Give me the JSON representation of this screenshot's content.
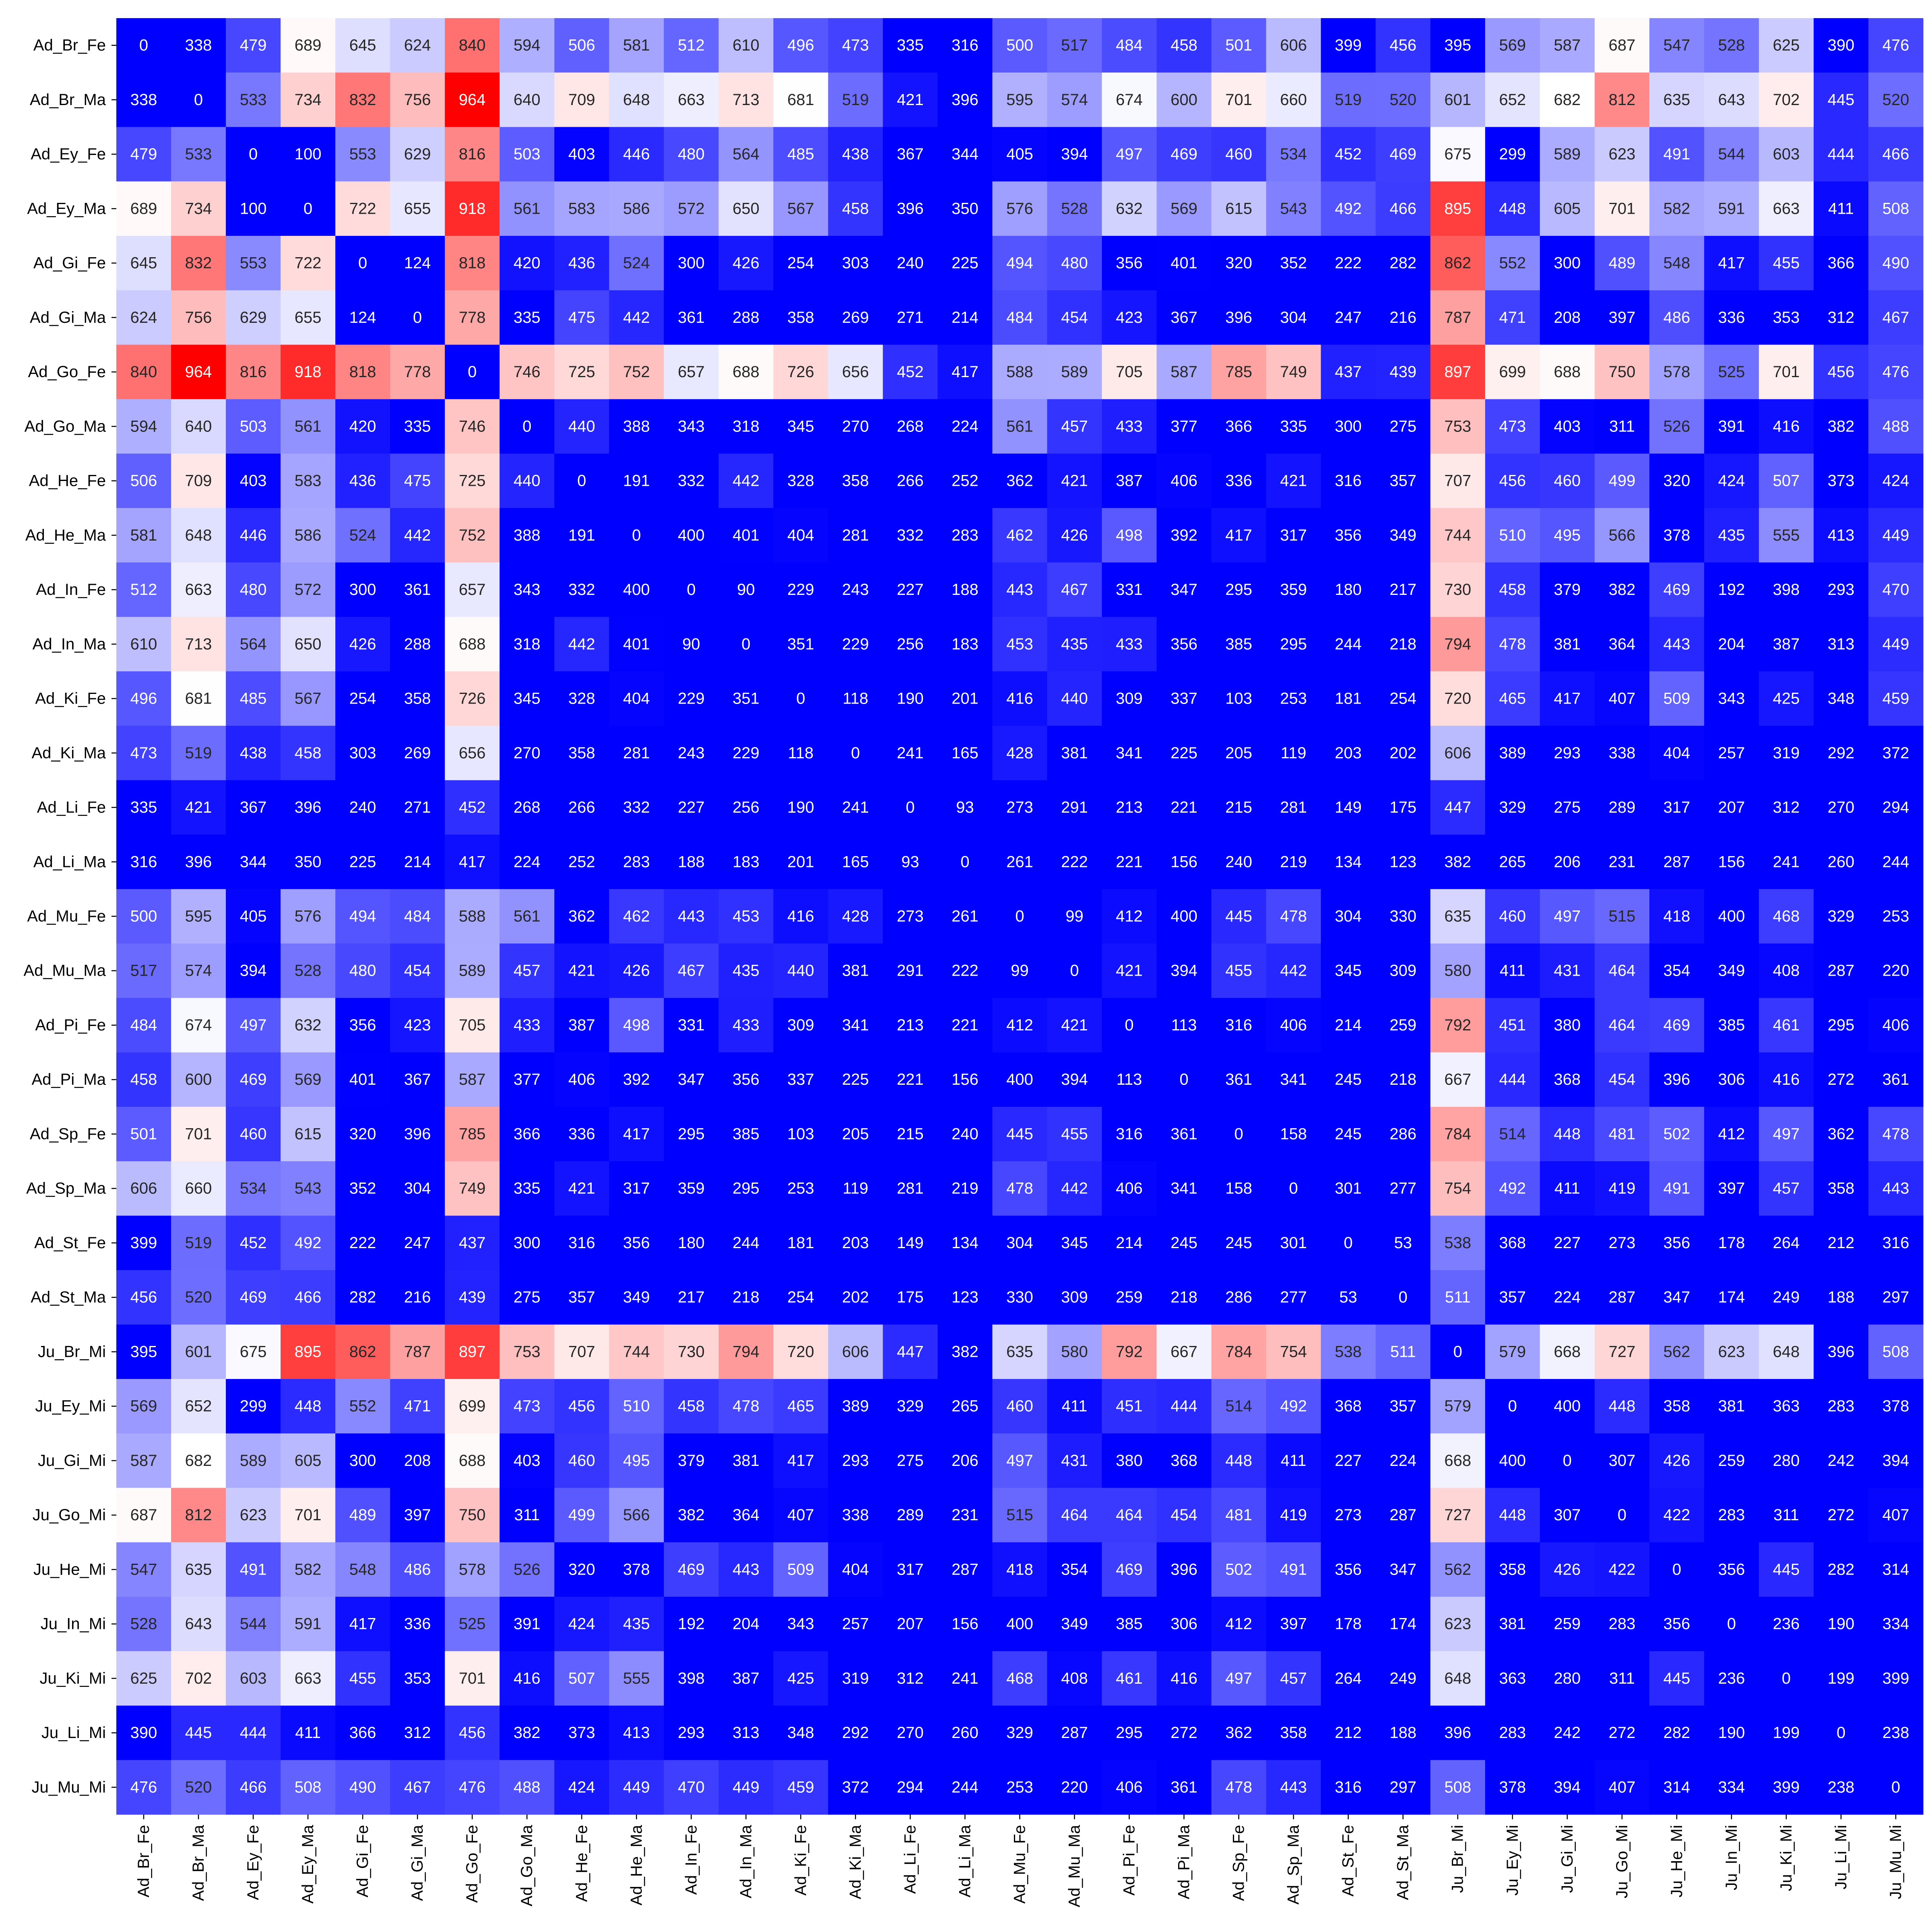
{
  "chart_data": {
    "type": "heatmap",
    "title": "",
    "xlabel": "",
    "ylabel": "",
    "colormap": "bwr",
    "value_range": [
      400,
      964
    ],
    "colors": {
      "low": "#0000ff",
      "mid": "#ffffff",
      "high": "#ff0000"
    },
    "colorbar": false,
    "labels": [
      "Ad_Br_Fe",
      "Ad_Br_Ma",
      "Ad_Ey_Fe",
      "Ad_Ey_Ma",
      "Ad_Gi_Fe",
      "Ad_Gi_Ma",
      "Ad_Go_Fe",
      "Ad_Go_Ma",
      "Ad_He_Fe",
      "Ad_He_Ma",
      "Ad_In_Fe",
      "Ad_In_Ma",
      "Ad_Ki_Fe",
      "Ad_Ki_Ma",
      "Ad_Li_Fe",
      "Ad_Li_Ma",
      "Ad_Mu_Fe",
      "Ad_Mu_Ma",
      "Ad_Pi_Fe",
      "Ad_Pi_Ma",
      "Ad_Sp_Fe",
      "Ad_Sp_Ma",
      "Ad_St_Fe",
      "Ad_St_Ma",
      "Ju_Br_Mi",
      "Ju_Ey_Mi",
      "Ju_Gi_Mi",
      "Ju_Go_Mi",
      "Ju_He_Mi",
      "Ju_In_Mi",
      "Ju_Ki_Mi",
      "Ju_Li_Mi",
      "Ju_Mu_Mi"
    ],
    "matrix": [
      [
        0,
        338,
        479,
        689,
        645,
        624,
        840,
        594,
        506,
        581,
        512,
        610,
        496,
        473,
        335,
        316,
        500,
        517,
        484,
        458,
        501,
        606,
        399,
        456,
        395,
        569,
        587,
        687,
        547,
        528,
        625,
        390,
        476
      ],
      [
        338,
        0,
        533,
        734,
        832,
        756,
        964,
        640,
        709,
        648,
        663,
        713,
        681,
        519,
        421,
        396,
        595,
        574,
        674,
        600,
        701,
        660,
        519,
        520,
        601,
        652,
        682,
        812,
        635,
        643,
        702,
        445,
        520
      ],
      [
        479,
        533,
        0,
        100,
        553,
        629,
        816,
        503,
        403,
        446,
        480,
        564,
        485,
        438,
        367,
        344,
        405,
        394,
        497,
        469,
        460,
        534,
        452,
        469,
        675,
        299,
        589,
        623,
        491,
        544,
        603,
        444,
        466
      ],
      [
        689,
        734,
        100,
        0,
        722,
        655,
        918,
        561,
        583,
        586,
        572,
        650,
        567,
        458,
        396,
        350,
        576,
        528,
        632,
        569,
        615,
        543,
        492,
        466,
        895,
        448,
        605,
        701,
        582,
        591,
        663,
        411,
        508
      ],
      [
        645,
        832,
        553,
        722,
        0,
        124,
        818,
        420,
        436,
        524,
        300,
        426,
        254,
        303,
        240,
        225,
        494,
        480,
        356,
        401,
        320,
        352,
        222,
        282,
        862,
        552,
        300,
        489,
        548,
        417,
        455,
        366,
        490
      ],
      [
        624,
        756,
        629,
        655,
        124,
        0,
        778,
        335,
        475,
        442,
        361,
        288,
        358,
        269,
        271,
        214,
        484,
        454,
        423,
        367,
        396,
        304,
        247,
        216,
        787,
        471,
        208,
        397,
        486,
        336,
        353,
        312,
        467
      ],
      [
        840,
        964,
        816,
        918,
        818,
        778,
        0,
        746,
        725,
        752,
        657,
        688,
        726,
        656,
        452,
        417,
        588,
        589,
        705,
        587,
        785,
        749,
        437,
        439,
        897,
        699,
        688,
        750,
        578,
        525,
        701,
        456,
        476
      ],
      [
        594,
        640,
        503,
        561,
        420,
        335,
        746,
        0,
        440,
        388,
        343,
        318,
        345,
        270,
        268,
        224,
        561,
        457,
        433,
        377,
        366,
        335,
        300,
        275,
        753,
        473,
        403,
        311,
        526,
        391,
        416,
        382,
        488
      ],
      [
        506,
        709,
        403,
        583,
        436,
        475,
        725,
        440,
        0,
        191,
        332,
        442,
        328,
        358,
        266,
        252,
        362,
        421,
        387,
        406,
        336,
        421,
        316,
        357,
        707,
        456,
        460,
        499,
        320,
        424,
        507,
        373,
        424
      ],
      [
        581,
        648,
        446,
        586,
        524,
        442,
        752,
        388,
        191,
        0,
        400,
        401,
        404,
        281,
        332,
        283,
        462,
        426,
        498,
        392,
        417,
        317,
        356,
        349,
        744,
        510,
        495,
        566,
        378,
        435,
        555,
        413,
        449
      ],
      [
        512,
        663,
        480,
        572,
        300,
        361,
        657,
        343,
        332,
        400,
        0,
        90,
        229,
        243,
        227,
        188,
        443,
        467,
        331,
        347,
        295,
        359,
        180,
        217,
        730,
        458,
        379,
        382,
        469,
        192,
        398,
        293,
        470
      ],
      [
        610,
        713,
        564,
        650,
        426,
        288,
        688,
        318,
        442,
        401,
        90,
        0,
        351,
        229,
        256,
        183,
        453,
        435,
        433,
        356,
        385,
        295,
        244,
        218,
        794,
        478,
        381,
        364,
        443,
        204,
        387,
        313,
        449
      ],
      [
        496,
        681,
        485,
        567,
        254,
        358,
        726,
        345,
        328,
        404,
        229,
        351,
        0,
        118,
        190,
        201,
        416,
        440,
        309,
        337,
        103,
        253,
        181,
        254,
        720,
        465,
        417,
        407,
        509,
        343,
        425,
        348,
        459
      ],
      [
        473,
        519,
        438,
        458,
        303,
        269,
        656,
        270,
        358,
        281,
        243,
        229,
        118,
        0,
        241,
        165,
        428,
        381,
        341,
        225,
        205,
        119,
        203,
        202,
        606,
        389,
        293,
        338,
        404,
        257,
        319,
        292,
        372
      ],
      [
        335,
        421,
        367,
        396,
        240,
        271,
        452,
        268,
        266,
        332,
        227,
        256,
        190,
        241,
        0,
        93,
        273,
        291,
        213,
        221,
        215,
        281,
        149,
        175,
        447,
        329,
        275,
        289,
        317,
        207,
        312,
        270,
        294
      ],
      [
        316,
        396,
        344,
        350,
        225,
        214,
        417,
        224,
        252,
        283,
        188,
        183,
        201,
        165,
        93,
        0,
        261,
        222,
        221,
        156,
        240,
        219,
        134,
        123,
        382,
        265,
        206,
        231,
        287,
        156,
        241,
        260,
        244
      ],
      [
        500,
        595,
        405,
        576,
        494,
        484,
        588,
        561,
        362,
        462,
        443,
        453,
        416,
        428,
        273,
        261,
        0,
        99,
        412,
        400,
        445,
        478,
        304,
        330,
        635,
        460,
        497,
        515,
        418,
        400,
        468,
        329,
        253
      ],
      [
        517,
        574,
        394,
        528,
        480,
        454,
        589,
        457,
        421,
        426,
        467,
        435,
        440,
        381,
        291,
        222,
        99,
        0,
        421,
        394,
        455,
        442,
        345,
        309,
        580,
        411,
        431,
        464,
        354,
        349,
        408,
        287,
        220
      ],
      [
        484,
        674,
        497,
        632,
        356,
        423,
        705,
        433,
        387,
        498,
        331,
        433,
        309,
        341,
        213,
        221,
        412,
        421,
        0,
        113,
        316,
        406,
        214,
        259,
        792,
        451,
        380,
        464,
        469,
        385,
        461,
        295,
        406
      ],
      [
        458,
        600,
        469,
        569,
        401,
        367,
        587,
        377,
        406,
        392,
        347,
        356,
        337,
        225,
        221,
        156,
        400,
        394,
        113,
        0,
        361,
        341,
        245,
        218,
        667,
        444,
        368,
        454,
        396,
        306,
        416,
        272,
        361
      ],
      [
        501,
        701,
        460,
        615,
        320,
        396,
        785,
        366,
        336,
        417,
        295,
        385,
        103,
        205,
        215,
        240,
        445,
        455,
        316,
        361,
        0,
        158,
        245,
        286,
        784,
        514,
        448,
        481,
        502,
        412,
        497,
        362,
        478
      ],
      [
        606,
        660,
        534,
        543,
        352,
        304,
        749,
        335,
        421,
        317,
        359,
        295,
        253,
        119,
        281,
        219,
        478,
        442,
        406,
        341,
        158,
        0,
        301,
        277,
        754,
        492,
        411,
        419,
        491,
        397,
        457,
        358,
        443
      ],
      [
        399,
        519,
        452,
        492,
        222,
        247,
        437,
        300,
        316,
        356,
        180,
        244,
        181,
        203,
        149,
        134,
        304,
        345,
        214,
        245,
        245,
        301,
        0,
        53,
        538,
        368,
        227,
        273,
        356,
        178,
        264,
        212,
        316
      ],
      [
        456,
        520,
        469,
        466,
        282,
        216,
        439,
        275,
        357,
        349,
        217,
        218,
        254,
        202,
        175,
        123,
        330,
        309,
        259,
        218,
        286,
        277,
        53,
        0,
        511,
        357,
        224,
        287,
        347,
        174,
        249,
        188,
        297
      ],
      [
        395,
        601,
        675,
        895,
        862,
        787,
        897,
        753,
        707,
        744,
        730,
        794,
        720,
        606,
        447,
        382,
        635,
        580,
        792,
        667,
        784,
        754,
        538,
        511,
        0,
        579,
        668,
        727,
        562,
        623,
        648,
        396,
        508
      ],
      [
        569,
        652,
        299,
        448,
        552,
        471,
        699,
        473,
        456,
        510,
        458,
        478,
        465,
        389,
        329,
        265,
        460,
        411,
        451,
        444,
        514,
        492,
        368,
        357,
        579,
        0,
        400,
        448,
        358,
        381,
        363,
        283,
        378
      ],
      [
        587,
        682,
        589,
        605,
        300,
        208,
        688,
        403,
        460,
        495,
        379,
        381,
        417,
        293,
        275,
        206,
        497,
        431,
        380,
        368,
        448,
        411,
        227,
        224,
        668,
        400,
        0,
        307,
        426,
        259,
        280,
        242,
        394
      ],
      [
        687,
        812,
        623,
        701,
        489,
        397,
        750,
        311,
        499,
        566,
        382,
        364,
        407,
        338,
        289,
        231,
        515,
        464,
        464,
        454,
        481,
        419,
        273,
        287,
        727,
        448,
        307,
        0,
        422,
        283,
        311,
        272,
        407
      ],
      [
        547,
        635,
        491,
        582,
        548,
        486,
        578,
        526,
        320,
        378,
        469,
        443,
        509,
        404,
        317,
        287,
        418,
        354,
        469,
        396,
        502,
        491,
        356,
        347,
        562,
        358,
        426,
        422,
        0,
        356,
        445,
        282,
        314
      ],
      [
        528,
        643,
        544,
        591,
        417,
        336,
        525,
        391,
        424,
        435,
        192,
        204,
        343,
        257,
        207,
        156,
        400,
        349,
        385,
        306,
        412,
        397,
        178,
        174,
        623,
        381,
        259,
        283,
        356,
        0,
        236,
        190,
        334
      ],
      [
        625,
        702,
        603,
        663,
        455,
        353,
        701,
        416,
        507,
        555,
        398,
        387,
        425,
        319,
        312,
        241,
        468,
        408,
        461,
        416,
        497,
        457,
        264,
        249,
        648,
        363,
        280,
        311,
        445,
        236,
        0,
        199,
        399
      ],
      [
        390,
        445,
        444,
        411,
        366,
        312,
        456,
        382,
        373,
        413,
        293,
        313,
        348,
        292,
        270,
        260,
        329,
        287,
        295,
        272,
        362,
        358,
        212,
        188,
        396,
        283,
        242,
        272,
        282,
        190,
        199,
        0,
        238
      ],
      [
        476,
        520,
        466,
        508,
        490,
        467,
        476,
        488,
        424,
        449,
        470,
        449,
        459,
        372,
        294,
        244,
        253,
        220,
        406,
        361,
        478,
        443,
        316,
        297,
        508,
        378,
        394,
        407,
        314,
        334,
        399,
        238,
        0
      ]
    ]
  }
}
